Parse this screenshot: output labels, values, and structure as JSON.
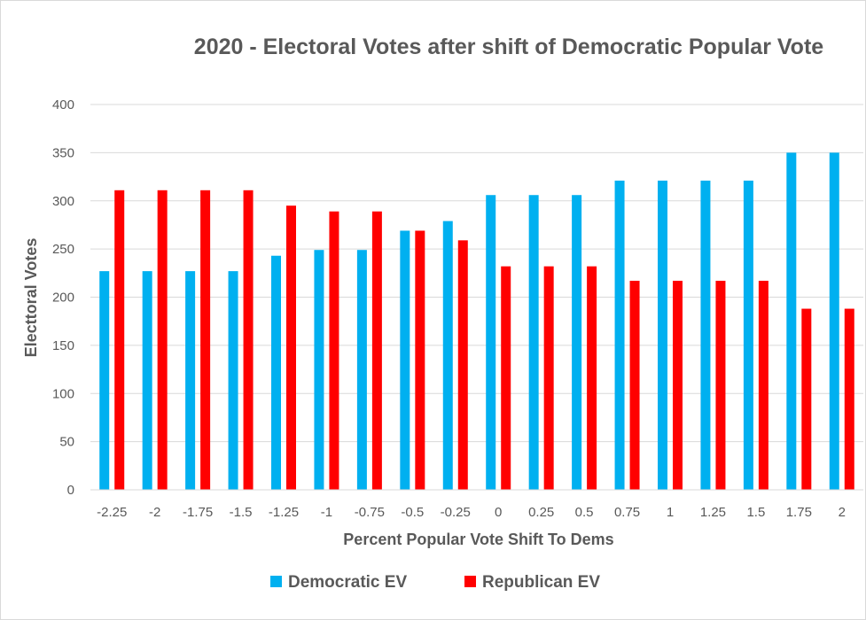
{
  "chart_data": {
    "type": "bar",
    "title": "2020 - Electoral Votes after shift of Democratic Popular Vote",
    "xlabel": "Percent Popular Vote Shift To Dems",
    "ylabel": "Electtoral Votes",
    "ylim": [
      0,
      400
    ],
    "yticks": [
      "0",
      "50",
      "100",
      "150",
      "200",
      "250",
      "300",
      "350",
      "400"
    ],
    "grid": true,
    "legend_position": "bottom",
    "categories": [
      "-2.25",
      "-2",
      "-1.75",
      "-1.5",
      "-1.25",
      "-1",
      "-0.75",
      "-0.5",
      "-0.25",
      "0",
      "0.25",
      "0.5",
      "0.75",
      "1",
      "1.25",
      "1.5",
      "1.75",
      "2"
    ],
    "series": [
      {
        "name": "Democratic EV",
        "color": "#00b0f0",
        "values": [
          227,
          227,
          227,
          227,
          243,
          249,
          249,
          269,
          279,
          306,
          306,
          306,
          321,
          321,
          321,
          321,
          350,
          350
        ]
      },
      {
        "name": "Republican EV",
        "color": "#ff0000",
        "values": [
          311,
          311,
          311,
          311,
          295,
          289,
          289,
          269,
          259,
          232,
          232,
          232,
          217,
          217,
          217,
          217,
          188,
          188
        ]
      }
    ]
  }
}
